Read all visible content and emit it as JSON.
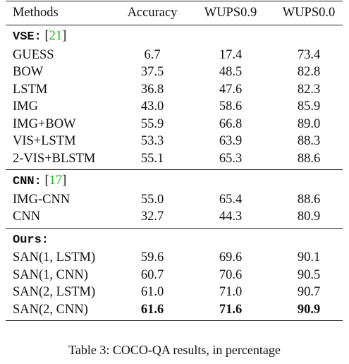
{
  "table": {
    "headers": [
      "Methods",
      "Accuracy",
      "WUPS0.9",
      "WUPS0.0"
    ],
    "groups": [
      {
        "label": "VSE:",
        "cite_open": " [",
        "cite_num": "21",
        "cite_close": "]",
        "rows": [
          {
            "method": "GUESS",
            "accuracy": "6.7",
            "wups09": "17.4",
            "wups00": "73.4"
          },
          {
            "method": "BOW",
            "accuracy": "37.5",
            "wups09": "48.5",
            "wups00": "82.8"
          },
          {
            "method": "LSTM",
            "accuracy": "36.8",
            "wups09": "47.6",
            "wups00": "82.3"
          },
          {
            "method": "IMG",
            "accuracy": "43.0",
            "wups09": "58.6",
            "wups00": "85.9"
          },
          {
            "method": "IMG+BOW",
            "accuracy": "55.9",
            "wups09": "66.8",
            "wups00": "89.0"
          },
          {
            "method": "VIS+LSTM",
            "accuracy": "53.3",
            "wups09": "63.9",
            "wups00": "88.3"
          },
          {
            "method": "2-VIS+BLSTM",
            "accuracy": "55.1",
            "wups09": "65.3",
            "wups00": "88.6"
          }
        ]
      },
      {
        "label": "CNN:",
        "cite_open": " [",
        "cite_num": "17",
        "cite_close": "]",
        "rows": [
          {
            "method": "IMG-CNN",
            "accuracy": "55.0",
            "wups09": "65.4",
            "wups00": "88.6"
          },
          {
            "method": "CNN",
            "accuracy": "32.7",
            "wups09": "44.3",
            "wups00": "80.9"
          }
        ]
      },
      {
        "label": "Ours:",
        "cite_open": "",
        "cite_num": "",
        "cite_close": "",
        "rows": [
          {
            "method": "SAN(1, LSTM)",
            "accuracy": "59.6",
            "wups09": "69.6",
            "wups00": "90.1"
          },
          {
            "method": "SAN(1, CNN)",
            "accuracy": "60.7",
            "wups09": "70.6",
            "wups00": "90.5"
          },
          {
            "method": "SAN(2, LSTM)",
            "accuracy": "61.0",
            "wups09": "71.0",
            "wups00": "90.7"
          },
          {
            "method": "SAN(2, CNN)",
            "accuracy": "61.6",
            "wups09": "71.6",
            "wups00": "90.9",
            "bold_values": true
          }
        ]
      }
    ]
  },
  "caption": "Table 3: COCO-QA results, in percentage",
  "colors": {
    "citation": "#21b021",
    "text": "#111111",
    "rule": "#222222"
  }
}
